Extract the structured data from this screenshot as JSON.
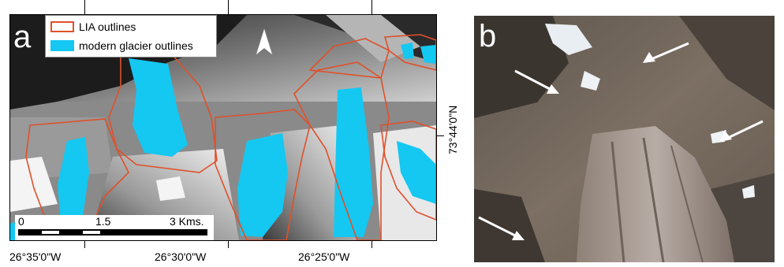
{
  "panel_a": {
    "letter": "a",
    "legend": {
      "lia_label": "LIA outlines",
      "modern_label": "modern glacier outlines",
      "lia_color": "#e0502a",
      "modern_color": "#14c8f2"
    },
    "north_arrow_icon": "north-arrow-icon",
    "scale": {
      "start": "0",
      "mid": "1.5",
      "end": "3 Kms."
    },
    "lon_labels": [
      "26°35'0\"W",
      "26°30'0\"W",
      "26°25'0\"W"
    ],
    "lat_label": "73°44'0\"N"
  },
  "panel_b": {
    "letter": "b",
    "arrow_icon": "white-arrow-icon",
    "arrow_color": "#ffffff"
  }
}
